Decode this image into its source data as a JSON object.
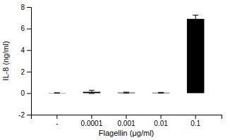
{
  "chart_data": {
    "type": "bar",
    "categories": [
      "-",
      "0.0001",
      "0.001",
      "0.01",
      "0.1"
    ],
    "values": [
      0.02,
      0.12,
      0.05,
      0.04,
      6.9
    ],
    "errors": [
      0.01,
      0.15,
      0.04,
      0.03,
      0.35
    ],
    "color": "#000000",
    "xlabel": "Flagellin (μg/ml)",
    "ylabel": "IL-8 (ng/ml)",
    "ylim": [
      -2,
      8
    ],
    "yticks": [
      -2,
      0,
      2,
      4,
      6,
      8
    ]
  }
}
